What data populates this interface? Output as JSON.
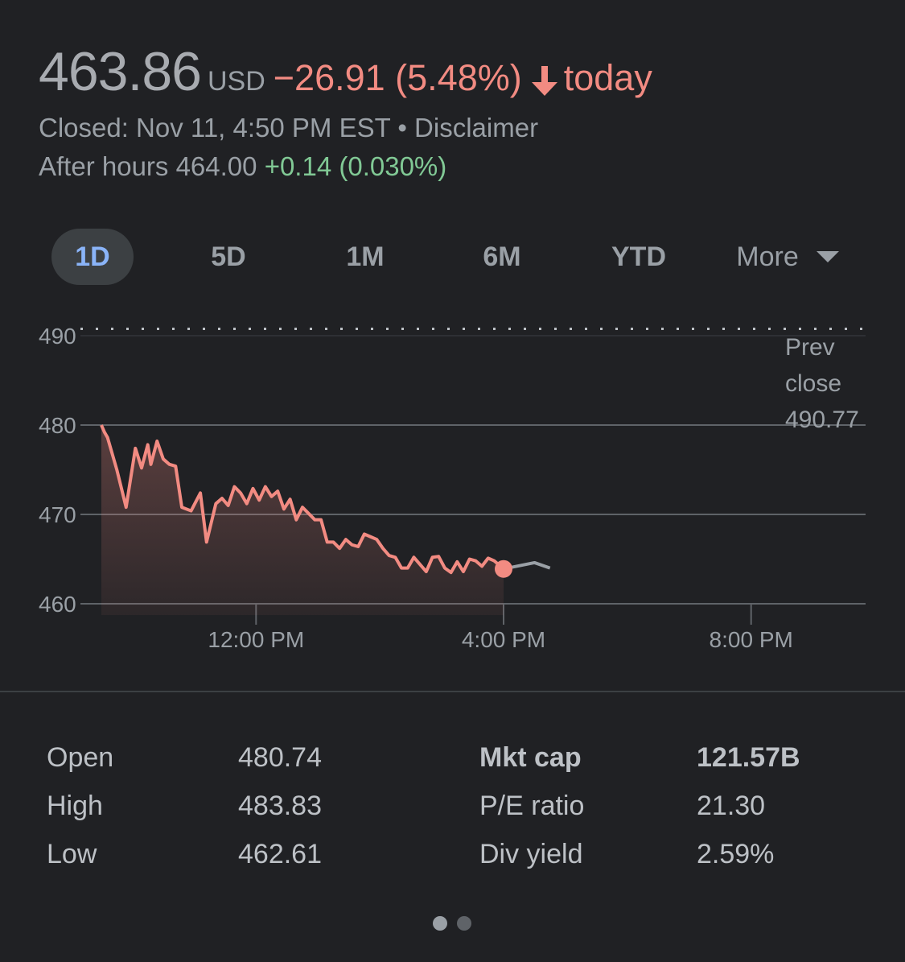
{
  "quote": {
    "price": "463.86",
    "currency": "USD",
    "change": "−26.91 (5.48%)",
    "direction_word": "today",
    "closed_text": "Closed: Nov 11, 4:50 PM EST • Disclaimer",
    "after_hours_label": "After hours 464.00",
    "after_hours_change": "+0.14 (0.030%)"
  },
  "range_tabs": [
    {
      "label": "1D",
      "active": true
    },
    {
      "label": "5D",
      "active": false
    },
    {
      "label": "1M",
      "active": false
    },
    {
      "label": "6M",
      "active": false
    },
    {
      "label": "YTD",
      "active": false
    },
    {
      "label": "More",
      "active": false
    }
  ],
  "colors": {
    "background": "#202124",
    "negative": "#f28b82",
    "positive": "#81c995",
    "active_tab": "#8ab4f8",
    "after_hours_line": "#9aa0a6"
  },
  "chart_data": {
    "type": "line",
    "y_ticks": [
      490,
      480,
      470,
      460
    ],
    "ylim": [
      460,
      490
    ],
    "x_ticks": [
      "12:00 PM",
      "4:00 PM",
      "8:00 PM"
    ],
    "x_tick_hours": [
      12,
      16,
      20
    ],
    "xlim_hours": [
      9.5,
      22
    ],
    "prev_close": {
      "label_lines": [
        "Prev",
        "close",
        "490.77"
      ],
      "value": 490.77
    },
    "series": [
      {
        "segment": "regular",
        "color": "#f28b82",
        "x": [
          9.5,
          9.55,
          9.6,
          9.75,
          9.9,
          10.05,
          10.15,
          10.25,
          10.3,
          10.4,
          10.5,
          10.6,
          10.7,
          10.8,
          10.95,
          11.1,
          11.2,
          11.35,
          11.45,
          11.55,
          11.65,
          11.75,
          11.85,
          11.95,
          12.05,
          12.15,
          12.25,
          12.35,
          12.45,
          12.55,
          12.65,
          12.75,
          12.85,
          12.95,
          13.05,
          13.15,
          13.25,
          13.35,
          13.45,
          13.55,
          13.65,
          13.75,
          13.85,
          13.95,
          14.05,
          14.15,
          14.25,
          14.35,
          14.45,
          14.55,
          14.65,
          14.75,
          14.85,
          14.95,
          15.05,
          15.15,
          15.25,
          15.35,
          15.45,
          15.55,
          15.65,
          15.75,
          15.85,
          15.95,
          16.0
        ],
        "values": [
          480.0,
          479.2,
          478.6,
          475.0,
          470.8,
          477.4,
          475.2,
          477.8,
          475.6,
          478.2,
          476.2,
          475.6,
          475.4,
          470.8,
          470.4,
          472.4,
          466.9,
          471.2,
          471.8,
          471.0,
          473.1,
          472.4,
          471.2,
          472.9,
          471.6,
          473.1,
          472.0,
          472.6,
          470.6,
          471.7,
          469.4,
          470.8,
          470.1,
          469.4,
          469.4,
          466.9,
          466.9,
          466.2,
          467.2,
          466.6,
          466.4,
          467.8,
          467.5,
          467.2,
          466.2,
          465.4,
          465.2,
          464.0,
          464.0,
          465.2,
          464.4,
          463.6,
          465.2,
          465.3,
          464.0,
          463.5,
          464.7,
          463.6,
          465.0,
          464.8,
          464.2,
          465.1,
          464.8,
          464.2,
          463.9
        ]
      },
      {
        "segment": "after_hours",
        "color": "#9aa0a6",
        "x": [
          16.0,
          16.5,
          16.75
        ],
        "values": [
          463.9,
          464.6,
          464.0
        ]
      }
    ]
  },
  "stats": [
    {
      "label": "Open",
      "value": "480.74",
      "bold": false
    },
    {
      "label": "High",
      "value": "483.83",
      "bold": false
    },
    {
      "label": "Low",
      "value": "462.61",
      "bold": false
    },
    {
      "label": "Mkt cap",
      "value": "121.57B",
      "bold": true
    },
    {
      "label": "P/E ratio",
      "value": "21.30",
      "bold": false
    },
    {
      "label": "Div yield",
      "value": "2.59%",
      "bold": false
    }
  ],
  "pagination": {
    "pages": 2,
    "current": 1
  }
}
